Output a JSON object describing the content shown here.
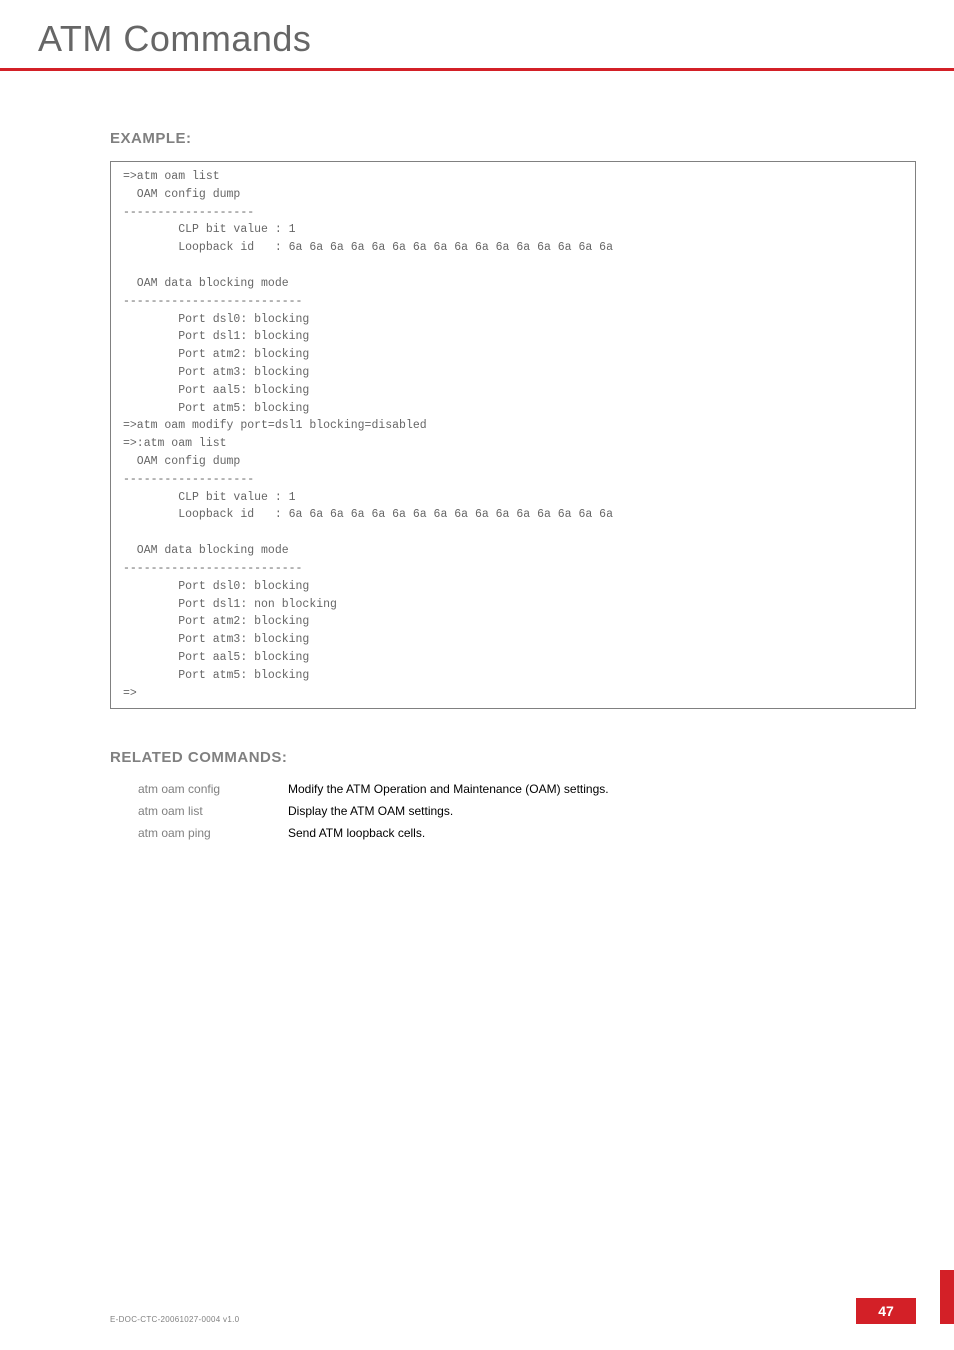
{
  "page": {
    "title": "ATM Commands",
    "doc_id": "E-DOC-CTC-20061027-0004 v1.0",
    "page_number": "47"
  },
  "example": {
    "heading": "EXAMPLE:",
    "code": "=>atm oam list\n  OAM config dump\n-------------------\n        CLP bit value : 1\n        Loopback id   : 6a 6a 6a 6a 6a 6a 6a 6a 6a 6a 6a 6a 6a 6a 6a 6a\n\n  OAM data blocking mode\n--------------------------\n        Port dsl0: blocking\n        Port dsl1: blocking\n        Port atm2: blocking\n        Port atm3: blocking\n        Port aal5: blocking\n        Port atm5: blocking\n=>atm oam modify port=dsl1 blocking=disabled\n=>:atm oam list\n  OAM config dump\n-------------------\n        CLP bit value : 1\n        Loopback id   : 6a 6a 6a 6a 6a 6a 6a 6a 6a 6a 6a 6a 6a 6a 6a 6a\n\n  OAM data blocking mode\n--------------------------\n        Port dsl0: blocking\n        Port dsl1: non blocking\n        Port atm2: blocking\n        Port atm3: blocking\n        Port aal5: blocking\n        Port atm5: blocking\n=>"
  },
  "related": {
    "heading": "RELATED COMMANDS:",
    "items": [
      {
        "cmd": "atm oam config",
        "desc": "Modify the ATM Operation and Maintenance (OAM) settings."
      },
      {
        "cmd": "atm oam list",
        "desc": "Display the ATM OAM settings."
      },
      {
        "cmd": "atm oam ping",
        "desc": "Send ATM loopback cells."
      }
    ]
  },
  "colors": {
    "accent": "#d32027",
    "heading_gray": "#808080",
    "code_gray": "#666666",
    "text_black": "#000000",
    "background": "#ffffff"
  },
  "typography": {
    "title_fontsize": 36,
    "heading_fontsize": 15,
    "code_fontsize": 11.5,
    "body_fontsize": 12,
    "footer_fontsize": 8
  }
}
